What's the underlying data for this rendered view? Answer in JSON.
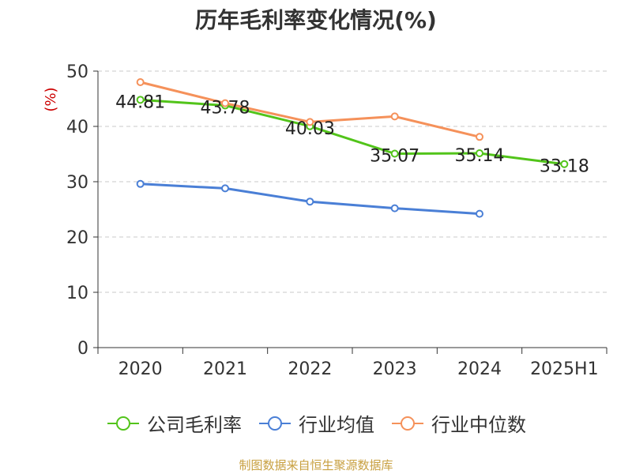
{
  "chart_data": {
    "type": "line",
    "title": "历年毛利率变化情况(%)",
    "ylabel": "(%)",
    "xlabel": "",
    "categories": [
      "2020",
      "2021",
      "2022",
      "2023",
      "2024",
      "2025H1"
    ],
    "ylim": [
      0,
      50
    ],
    "yticks": [
      0,
      10,
      20,
      30,
      40,
      50
    ],
    "grid": true,
    "legend_position": "bottom",
    "series": [
      {
        "name": "公司毛利率",
        "color": "#52c41a",
        "values": [
          44.81,
          43.78,
          40.03,
          35.07,
          35.14,
          33.18
        ],
        "labels": [
          "44.81",
          "43.78",
          "40.03",
          "35.07",
          "35.14",
          "33.18"
        ]
      },
      {
        "name": "行业均值",
        "color": "#4a7fd6",
        "values": [
          29.6,
          28.8,
          26.4,
          25.2,
          24.2,
          null
        ]
      },
      {
        "name": "行业中位数",
        "color": "#f5915a",
        "values": [
          48.0,
          44.2,
          40.8,
          41.8,
          38.1,
          null
        ]
      }
    ]
  },
  "source": "制图数据来自恒生聚源数据库"
}
